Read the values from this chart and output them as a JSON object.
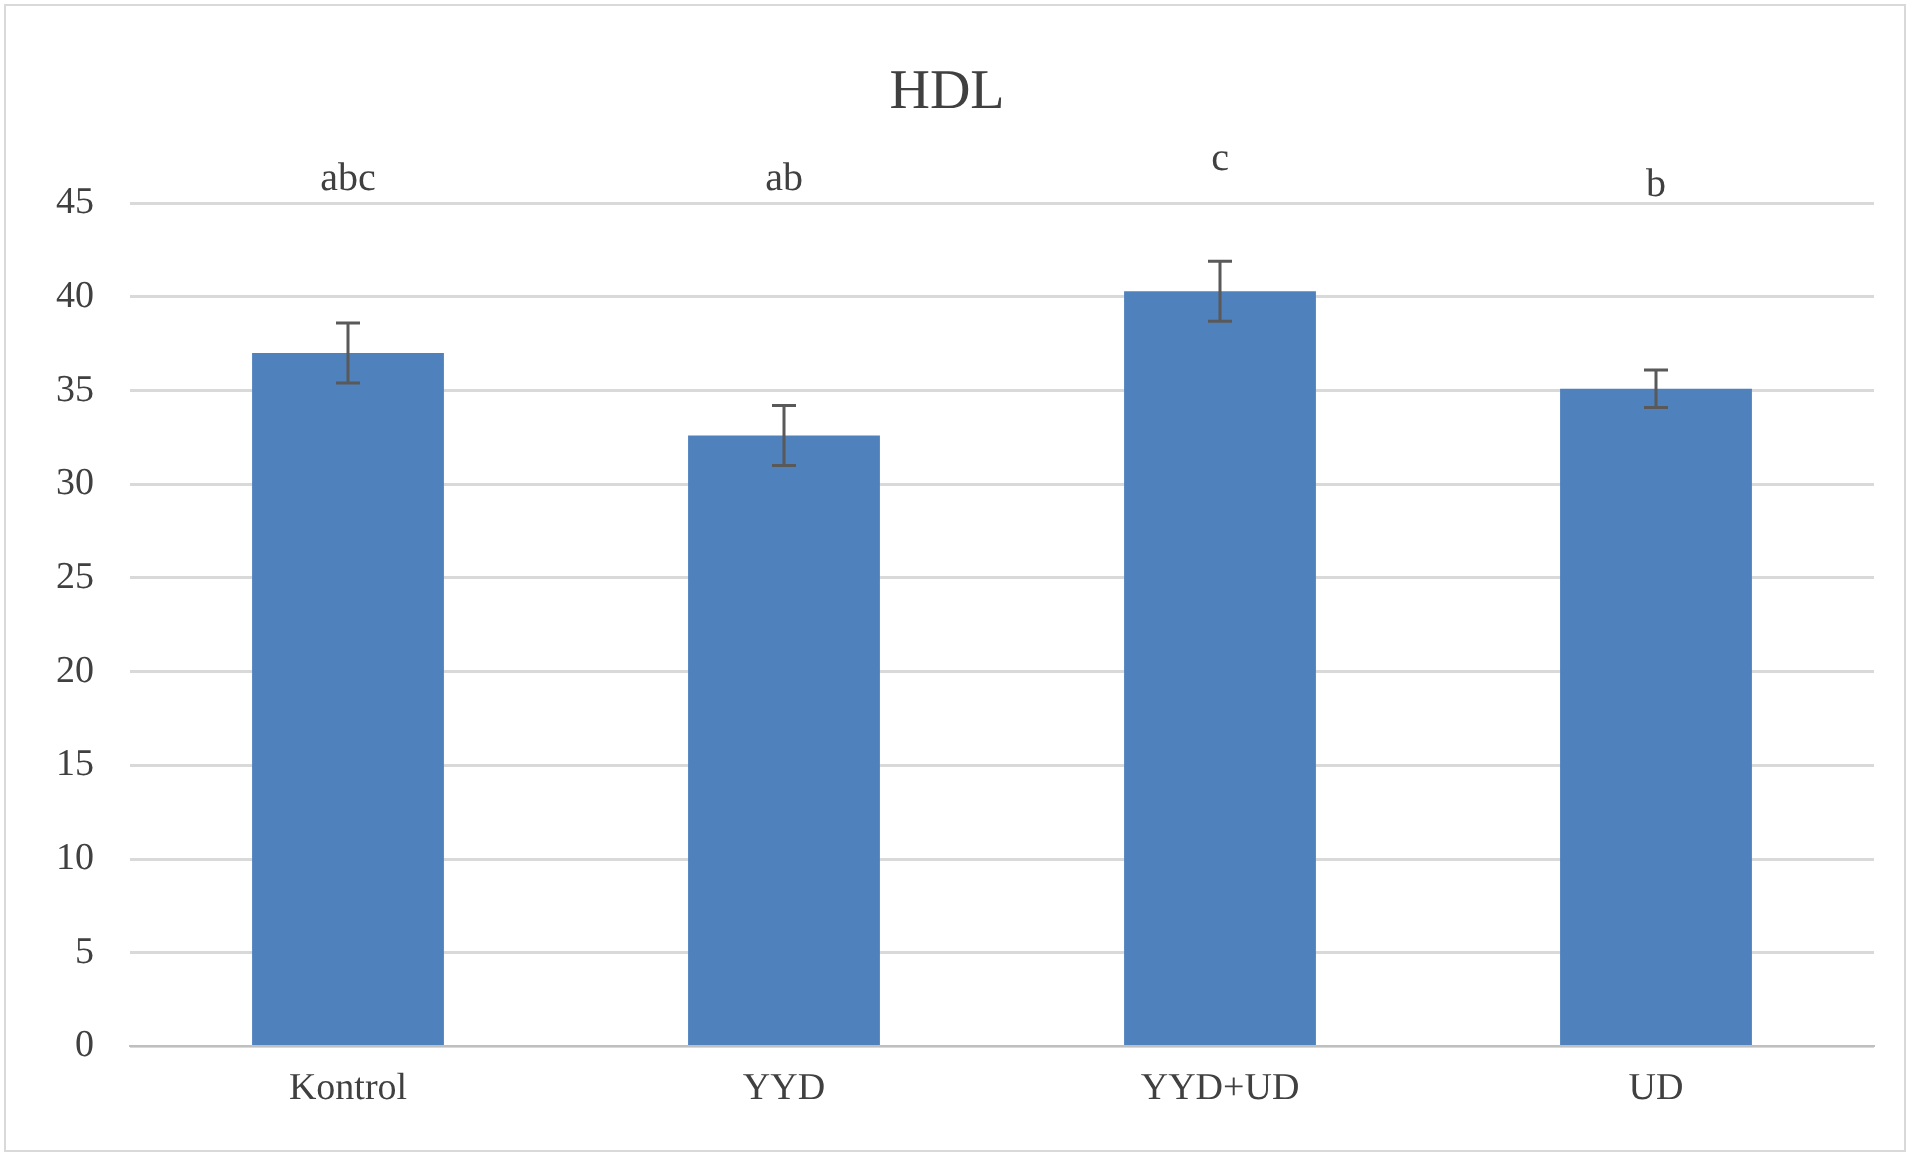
{
  "chart_data": {
    "type": "bar",
    "title": "HDL",
    "categories": [
      "Kontrol",
      "YYD",
      "YYD+UD",
      "UD"
    ],
    "values": [
      37.0,
      32.6,
      40.3,
      35.1
    ],
    "errors": [
      1.6,
      1.6,
      1.6,
      1.0
    ],
    "color": "#4f81bd",
    "ylim": [
      0,
      45
    ],
    "yticks": [
      0,
      5,
      10,
      15,
      20,
      25,
      30,
      35,
      40,
      45
    ],
    "grid": "y",
    "legend": false,
    "annotations": [
      "abc",
      "ab",
      "c",
      "b"
    ]
  }
}
